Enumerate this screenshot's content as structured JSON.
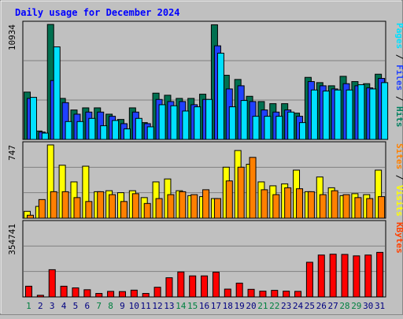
{
  "chart_data": {
    "type": "bar",
    "title": "Daily usage for December 2024",
    "categories": [
      "1",
      "2",
      "3",
      "4",
      "5",
      "6",
      "7",
      "8",
      "9",
      "10",
      "11",
      "12",
      "13",
      "14",
      "15",
      "16",
      "17",
      "18",
      "19",
      "20",
      "21",
      "22",
      "23",
      "24",
      "25",
      "26",
      "27",
      "28",
      "29",
      "30",
      "31"
    ],
    "weekend_days": [
      1,
      7,
      8,
      14,
      15,
      21,
      22,
      28,
      29
    ],
    "panels": [
      {
        "id": "hits",
        "max_label": "10934",
        "ylim": [
          0,
          10934
        ],
        "legend": [
          {
            "text": "Pages",
            "color": "#00e0ff"
          },
          {
            "text": " / ",
            "color": "#000000"
          },
          {
            "text": "Files",
            "color": "#2040ff"
          },
          {
            "text": " / ",
            "color": "#000000"
          },
          {
            "text": "Hits",
            "color": "#008060"
          }
        ],
        "series": [
          {
            "name": "Hits",
            "color": "#007050",
            "values": [
              4500,
              800,
              10934,
              3900,
              2800,
              3000,
              3000,
              2400,
              1900,
              3000,
              1600,
              4400,
              4200,
              3900,
              3900,
              4300,
              10900,
              6100,
              5700,
              4100,
              3600,
              3400,
              3400,
              2500,
              5900,
              5400,
              5100,
              6000,
              5500,
              5300,
              6200
            ]
          },
          {
            "name": "Files",
            "color": "#2040ff",
            "values": [
              3900,
              700,
              5600,
              3500,
              2400,
              2600,
              2600,
              2200,
              1500,
              2600,
              1500,
              3800,
              3600,
              3600,
              3300,
              3800,
              8900,
              4800,
              5100,
              3600,
              2800,
              2600,
              2800,
              2200,
              5500,
              5100,
              4800,
              5300,
              5100,
              4900,
              5800
            ]
          },
          {
            "name": "Pages",
            "color": "#00e0ff",
            "values": [
              4000,
              600,
              8800,
              1700,
              1700,
              2000,
              1300,
              1800,
              1000,
              2000,
              1200,
              3300,
              3200,
              2700,
              3100,
              3800,
              8200,
              3100,
              3700,
              2200,
              2200,
              2200,
              2600,
              1600,
              4700,
              4600,
              4700,
              4700,
              5200,
              4800,
              5400
            ]
          }
        ]
      },
      {
        "id": "visits",
        "max_label": "747",
        "ylim": [
          0,
          747
        ],
        "legend": [
          {
            "text": "Sites",
            "color": "#ff8000"
          },
          {
            "text": " / ",
            "color": "#000000"
          },
          {
            "text": "Visits",
            "color": "#ffff00"
          }
        ],
        "series": [
          {
            "name": "Visits",
            "color": "#ffff00",
            "values": [
              70,
              120,
              747,
              540,
              370,
              530,
              270,
              280,
              260,
              280,
              210,
              370,
              400,
              280,
              230,
              220,
              200,
              520,
              690,
              550,
              370,
              330,
              350,
              490,
              270,
              420,
              310,
              230,
              250,
              240,
              490
            ]
          },
          {
            "name": "Sites",
            "color": "#ff8000",
            "values": [
              30,
              190,
              270,
              270,
              210,
              170,
              270,
              240,
              170,
              250,
              150,
              200,
              240,
              270,
              240,
              290,
              200,
              380,
              520,
              620,
              290,
              240,
              310,
              300,
              270,
              240,
              280,
              240,
              210,
              200,
              220
            ]
          }
        ]
      },
      {
        "id": "kbytes",
        "max_label": "354741",
        "ylim": [
          0,
          354741
        ],
        "legend": [
          {
            "text": "KBytes",
            "color": "#ff4000"
          }
        ],
        "series": [
          {
            "name": "KBytes",
            "color": "#ff0000",
            "values": [
              52000,
              8000,
              132000,
              52000,
              44000,
              35000,
              17000,
              27000,
              26000,
              33000,
              17000,
              47000,
              93000,
              121000,
              102000,
              102000,
              120000,
              38000,
              67000,
              37000,
              28000,
              32000,
              28000,
              27000,
              168000,
              203000,
              207000,
              206000,
              199000,
              203000,
              216000
            ]
          }
        ]
      }
    ]
  }
}
